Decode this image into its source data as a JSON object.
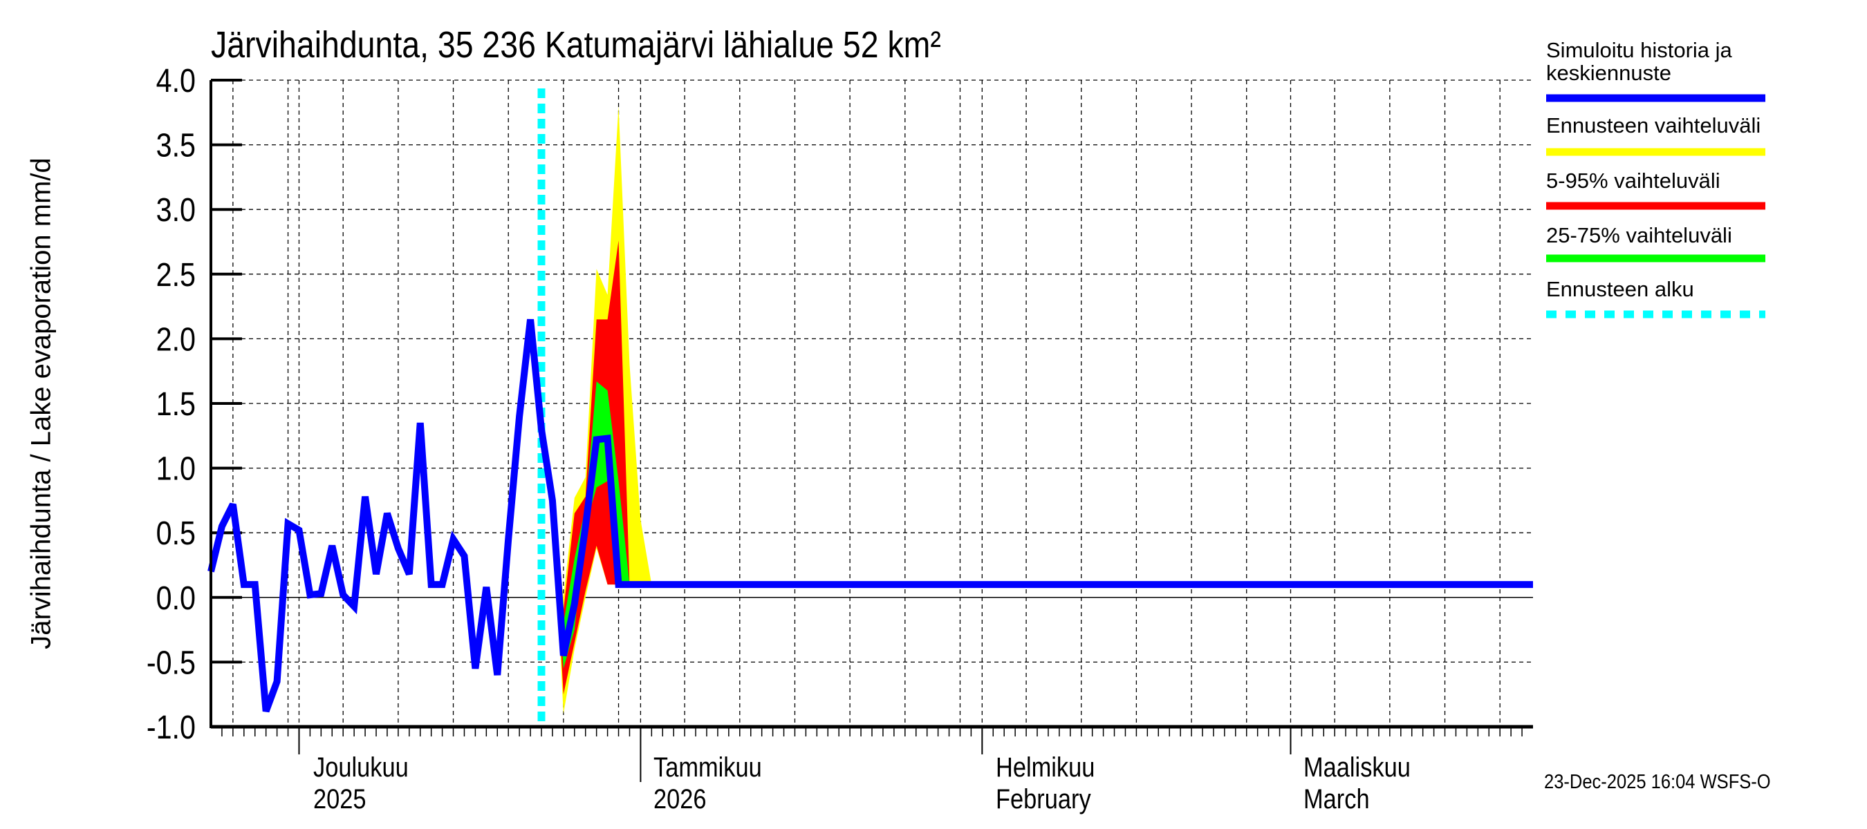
{
  "chart_data": {
    "type": "line",
    "title": "Järvihaihdunta, 35 236 Katumajärvi lähialue 52 km²",
    "ylabel": "Järvihaihdunta / Lake evaporation   mm/d",
    "xlabel": "",
    "x_unit": "days since 2025-11-23",
    "xlim": [
      0,
      120
    ],
    "ylim": [
      -1.0,
      4.0
    ],
    "yticks": [
      "4.0",
      "3.5",
      "3.0",
      "2.5",
      "2.0",
      "1.5",
      "1.0",
      "0.5",
      "0.0",
      "-0.5",
      "-1.0"
    ],
    "grid": true,
    "months": [
      {
        "day": 8,
        "label1": "Joulukuu",
        "label2": "2025"
      },
      {
        "day": 39,
        "label1": "Tammikuu",
        "label2": "2026"
      },
      {
        "day": 70,
        "label1": "Helmikuu",
        "label2": "February"
      },
      {
        "day": 98,
        "label1": "Maaliskuu",
        "label2": "March"
      }
    ],
    "forecast_start_day": 30,
    "series": [
      {
        "name": "Simuloitu historia ja keskiennuste",
        "color": "#0000ff",
        "x": [
          0,
          1,
          2,
          3,
          4,
          5,
          6,
          7,
          8,
          9,
          10,
          11,
          12,
          13,
          14,
          15,
          16,
          17,
          18,
          19,
          20,
          21,
          22,
          23,
          24,
          25,
          26,
          27,
          28,
          29,
          30,
          31,
          32,
          33,
          34,
          35,
          36,
          37,
          120
        ],
        "y": [
          0.2,
          0.55,
          0.72,
          0.1,
          0.1,
          -0.88,
          -0.65,
          0.57,
          0.52,
          0.02,
          0.03,
          0.4,
          0.02,
          -0.07,
          0.78,
          0.18,
          0.65,
          0.38,
          0.18,
          1.35,
          0.1,
          0.1,
          0.45,
          0.32,
          -0.55,
          0.08,
          -0.6,
          0.45,
          1.4,
          2.15,
          1.3,
          0.75,
          -0.45,
          -0.05,
          0.55,
          1.22,
          1.23,
          0.1,
          0.1
        ]
      },
      {
        "name": "Ennusteen vaihteluväli",
        "color": "#ffff00",
        "x": [
          31,
          32,
          33,
          34,
          35,
          36,
          37,
          38,
          39,
          40
        ],
        "upper": [
          0.75,
          0.0,
          0.77,
          0.93,
          2.54,
          2.34,
          3.8,
          1.8,
          0.6,
          0.1
        ],
        "lower": [
          0.75,
          -0.9,
          -0.4,
          0.0,
          0.38,
          0.1,
          0.1,
          0.1,
          0.1,
          0.1
        ]
      },
      {
        "name": "5-95% vaihteluväli",
        "color": "#ff0000",
        "x": [
          31,
          32,
          33,
          34,
          35,
          36,
          37,
          38
        ],
        "upper": [
          0.75,
          -0.1,
          0.65,
          0.78,
          2.15,
          2.15,
          2.76,
          0.1
        ],
        "lower": [
          0.75,
          -0.75,
          -0.35,
          0.05,
          0.4,
          0.1,
          0.1,
          0.1
        ]
      },
      {
        "name": "25-75% vaihteluväli",
        "color": "#00ff00",
        "x": [
          31,
          32,
          33,
          34,
          35,
          36,
          37,
          38
        ],
        "upper": [
          0.75,
          -0.2,
          0.3,
          0.7,
          1.67,
          1.6,
          0.9,
          0.1
        ],
        "lower": [
          0.75,
          -0.55,
          -0.25,
          0.55,
          0.85,
          0.9,
          0.1,
          0.1
        ]
      },
      {
        "name": "Ennusteen alku",
        "color": "#00ffff"
      }
    ],
    "legend": {
      "placement": "right",
      "entries": [
        {
          "label": "Simuloitu historia ja keskiennuste",
          "line1": "Simuloitu historia ja",
          "line2": "keskiennuste",
          "color": "#0000ff",
          "style": "solid"
        },
        {
          "label": "Ennusteen vaihteluväli",
          "color": "#ffff00",
          "style": "solid"
        },
        {
          "label": "5-95% vaihteluväli",
          "color": "#ff0000",
          "style": "solid"
        },
        {
          "label": "25-75% vaihteluväli",
          "color": "#00ff00",
          "style": "solid"
        },
        {
          "label": "Ennusteen alku",
          "color": "#00ffff",
          "style": "dashed"
        }
      ]
    }
  },
  "footer": "23-Dec-2025 16:04 WSFS-O"
}
